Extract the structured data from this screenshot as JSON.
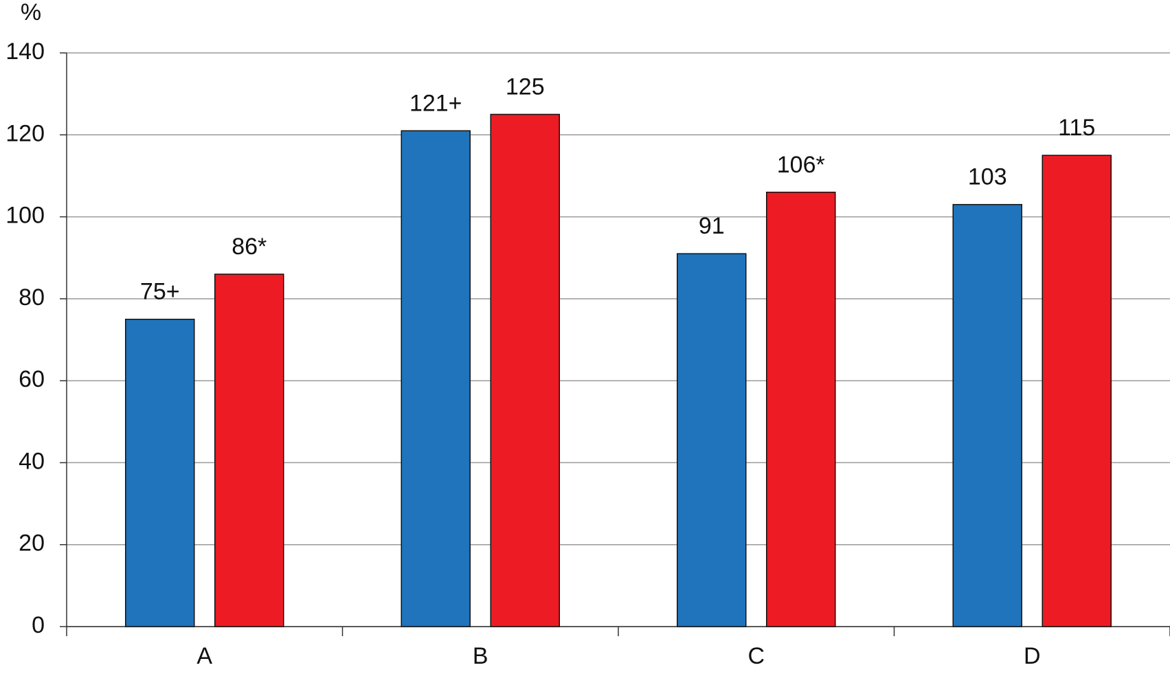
{
  "chart_data": {
    "type": "bar",
    "y_label": "%",
    "categories": [
      "A",
      "B",
      "C",
      "D"
    ],
    "series": [
      {
        "color": "#1f74bb",
        "values": [
          75,
          121,
          91,
          103
        ],
        "value_labels": [
          "75+",
          "121+",
          "91",
          "103"
        ]
      },
      {
        "color": "#ed1c24",
        "values": [
          86,
          125,
          106,
          115
        ],
        "value_labels": [
          "86*",
          "125",
          "106*",
          "115"
        ]
      }
    ],
    "ylim": [
      0,
      140
    ],
    "yticks": [
      0,
      20,
      40,
      60,
      80,
      100,
      120,
      140
    ],
    "grid": true
  }
}
